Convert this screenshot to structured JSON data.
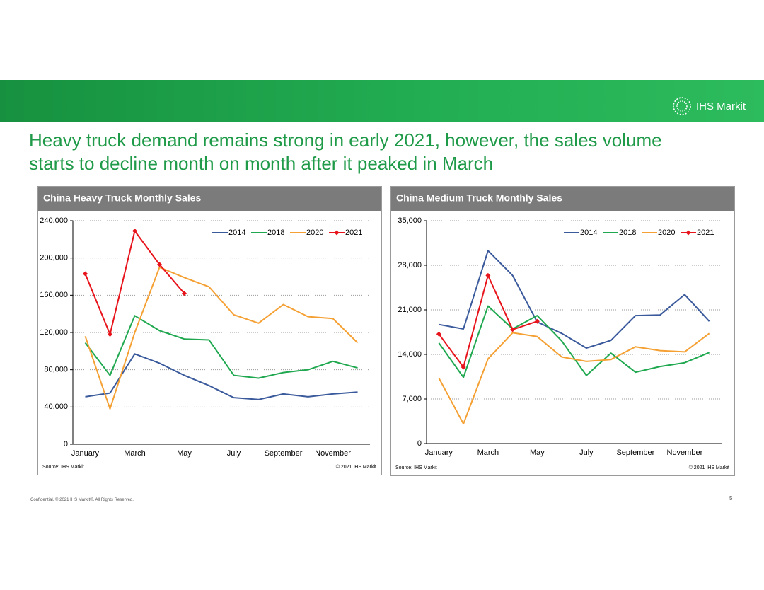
{
  "header": {
    "logo": "IHS Markit",
    "title": "Heavy truck demand remains strong in early 2021, however, the sales volume starts to decline month on month after it peaked in March"
  },
  "footer": {
    "confidential": "Confidential. © 2021 IHS Markit®. All Rights Reserved.",
    "page": "5"
  },
  "chart_data": [
    {
      "type": "line",
      "title": "China Heavy Truck Monthly Sales",
      "source": "Source: IHS Markit",
      "copyright": "© 2021 IHS Markit",
      "categories": [
        "January",
        null,
        "March",
        null,
        "May",
        null,
        "July",
        null,
        "September",
        null,
        "November",
        null
      ],
      "ylim": [
        0,
        240000
      ],
      "yticks": [
        0,
        {
          "value": 40000,
          "label": "40,000"
        },
        {
          "value": 80000,
          "label": "80,000"
        },
        {
          "value": 120000,
          "label": "120,000"
        },
        {
          "value": 160000,
          "label": "160,000"
        },
        {
          "value": 200000,
          "label": "200,000"
        },
        {
          "value": 240000,
          "label": "240,000"
        }
      ],
      "grid": true,
      "legend": "top-right",
      "series": [
        {
          "name": "2014",
          "color": "#3a5a9c",
          "values": [
            51000,
            55000,
            97000,
            87000,
            74000,
            63000,
            50000,
            48000,
            54000,
            51000,
            54000,
            56000
          ]
        },
        {
          "name": "2018",
          "color": "#1fa84f",
          "values": [
            109000,
            74000,
            138000,
            122000,
            113000,
            112000,
            74000,
            71000,
            77000,
            80000,
            89000,
            82000
          ]
        },
        {
          "name": "2020",
          "color": "#f5a033",
          "values": [
            116000,
            38000,
            120000,
            190000,
            179000,
            169000,
            139000,
            130000,
            150000,
            137000,
            135000,
            109000
          ]
        },
        {
          "name": "2021",
          "color": "#e8141c",
          "marker": "diamond",
          "values": [
            183000,
            118000,
            229000,
            193000,
            162000,
            null,
            null,
            null,
            null,
            null,
            null,
            null
          ]
        }
      ]
    },
    {
      "type": "line",
      "title": "China Medium Truck Monthly Sales",
      "source": "Source: IHS Markit",
      "copyright": "© 2021 IHS Markit",
      "categories": [
        "January",
        null,
        "March",
        null,
        "May",
        null,
        "July",
        null,
        "September",
        null,
        "November",
        null
      ],
      "ylim": [
        0,
        35000
      ],
      "yticks": [
        0,
        {
          "value": 7000,
          "label": "7,000"
        },
        {
          "value": 14000,
          "label": "14,000"
        },
        {
          "value": 21000,
          "label": "21,000"
        },
        {
          "value": 28000,
          "label": "28,000"
        },
        {
          "value": 35000,
          "label": "35,000"
        }
      ],
      "grid": true,
      "legend": "top-right",
      "series": [
        {
          "name": "2014",
          "color": "#3a5a9c",
          "values": [
            18700,
            18000,
            30300,
            26400,
            19100,
            17300,
            15000,
            16200,
            20100,
            20200,
            23400,
            19200
          ]
        },
        {
          "name": "2018",
          "color": "#1fa84f",
          "values": [
            15800,
            10400,
            21600,
            18000,
            20100,
            16100,
            10700,
            14200,
            11200,
            12100,
            12700,
            14300
          ]
        },
        {
          "name": "2020",
          "color": "#f5a033",
          "values": [
            10300,
            3100,
            13300,
            17400,
            16800,
            13600,
            12900,
            13200,
            15200,
            14600,
            14400,
            17300
          ]
        },
        {
          "name": "2021",
          "color": "#e8141c",
          "marker": "diamond",
          "values": [
            17200,
            12000,
            26400,
            17900,
            19200,
            null,
            null,
            null,
            null,
            null,
            null,
            null
          ]
        }
      ]
    }
  ]
}
